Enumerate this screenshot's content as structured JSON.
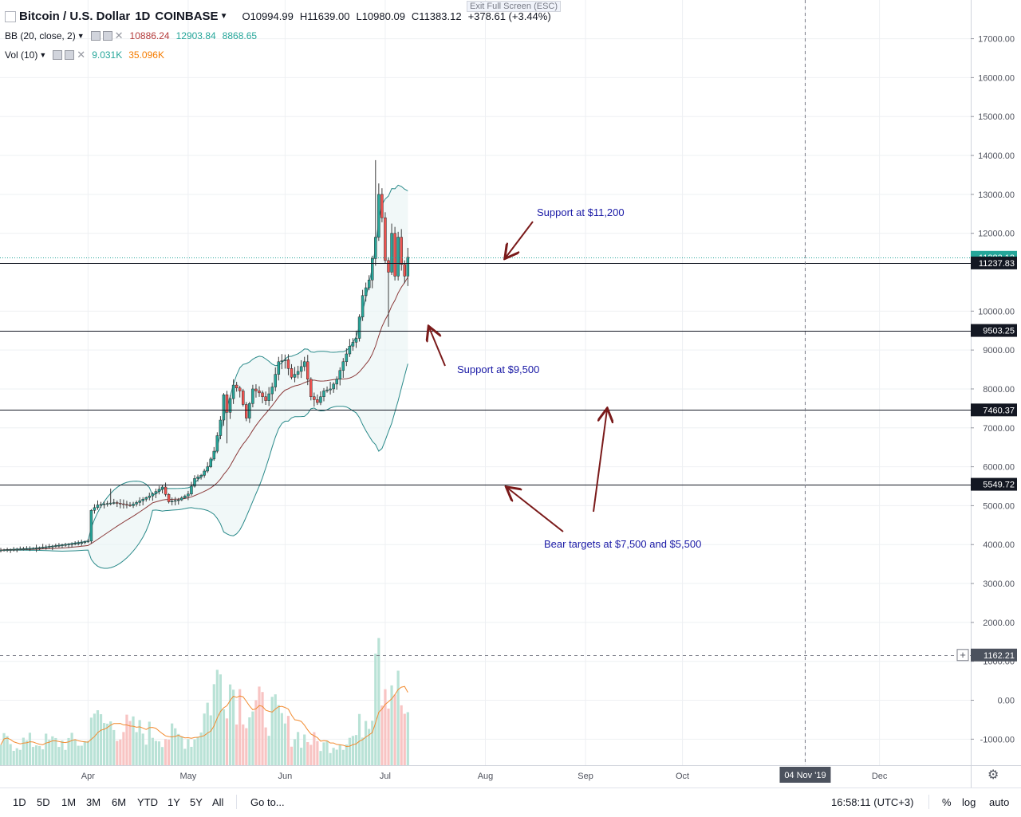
{
  "header": {
    "symbol": "Bitcoin / U.S. Dollar",
    "interval": "1D",
    "exchange": "COINBASE",
    "open": "O10994.99",
    "high": "H11639.00",
    "low": "L10980.09",
    "close": "C11383.12",
    "change": "+378.61 (+3.44%)",
    "exit_fullscreen": "Exit Full Screen (ESC)"
  },
  "indicators": {
    "bb": {
      "label": "BB (20, close, 2)",
      "v1": "10886.24",
      "v2": "12903.84",
      "v3": "8868.65"
    },
    "vol": {
      "label": "Vol (10)",
      "v1": "9.031K",
      "v2": "35.096K"
    }
  },
  "colors": {
    "up": "#26a69a",
    "down": "#ef5350",
    "bb_band": "#2a8a8a",
    "bb_basis": "#8b3a3a",
    "vol_up": "#b9e2d6",
    "vol_down": "#f8c4c3",
    "vol_ma": "#f28b30",
    "annot_text": "#1a1aa6",
    "arrow": "#7a1a1a",
    "legend_green": "#26a69a",
    "legend_red": "#b43b3b",
    "legend_orange": "#f57c00"
  },
  "bottom_bar": {
    "timeframes": [
      "1D",
      "5D",
      "1M",
      "3M",
      "6M",
      "YTD",
      "1Y",
      "5Y",
      "All"
    ],
    "goto": "Go to...",
    "clock": "16:58:11 (UTC+3)",
    "percent": "%",
    "log": "log",
    "auto": "auto"
  },
  "chart_data": {
    "type": "candlestick",
    "title": "Bitcoin / U.S. Dollar, 1D, COINBASE",
    "x_ticks": [
      "Apr",
      "May",
      "Jun",
      "Jul",
      "Aug",
      "Sep",
      "Oct",
      "04 Nov '19",
      "Dec"
    ],
    "y_ticks": [
      "17000.00",
      "16000.00",
      "15000.00",
      "14000.00",
      "13000.00",
      "12000.00",
      "10000.00",
      "9000.00",
      "8000.00",
      "7000.00",
      "6000.00",
      "5000.00",
      "4000.00",
      "3000.00",
      "2000.00",
      "1000.00",
      "0.00",
      "-1000.00"
    ],
    "ylim": [
      -1800,
      17700
    ],
    "price_tags": [
      {
        "value": 11383.12,
        "label": "11383.12",
        "style": "last"
      },
      {
        "value": 11237.83,
        "label": "11237.83",
        "style": "line"
      },
      {
        "value": 9503.25,
        "label": "9503.25",
        "style": "line"
      },
      {
        "value": 7460.37,
        "label": "7460.37",
        "style": "line"
      },
      {
        "value": 5549.72,
        "label": "5549.72",
        "style": "line"
      },
      {
        "value": 1162.21,
        "label": "1162.21",
        "style": "crosshair"
      }
    ],
    "crosshair_x_label": "04 Nov '19",
    "annotations": [
      {
        "text": "Support at $11,200"
      },
      {
        "text": "Support at $9,500"
      },
      {
        "text": "Bear targets at $7,500 and $5,500"
      }
    ],
    "anchors": [
      {
        "day": 0,
        "price": 3860
      },
      {
        "day": 10,
        "price": 3900
      },
      {
        "day": 20,
        "price": 4000
      },
      {
        "day": 25,
        "price": 4050
      },
      {
        "day": 27,
        "price": 4090
      },
      {
        "day": 28,
        "price": 4880
      },
      {
        "day": 30,
        "price": 5020
      },
      {
        "day": 35,
        "price": 5080
      },
      {
        "day": 40,
        "price": 5000
      },
      {
        "day": 46,
        "price": 5250
      },
      {
        "day": 50,
        "price": 5480
      },
      {
        "day": 52,
        "price": 5100
      },
      {
        "day": 55,
        "price": 5150
      },
      {
        "day": 58,
        "price": 5300
      },
      {
        "day": 60,
        "price": 5700
      },
      {
        "day": 62,
        "price": 5780
      },
      {
        "day": 64,
        "price": 6000
      },
      {
        "day": 66,
        "price": 6400
      },
      {
        "day": 68,
        "price": 7200
      },
      {
        "day": 69,
        "price": 7850
      },
      {
        "day": 70,
        "price": 7400
      },
      {
        "day": 72,
        "price": 8100
      },
      {
        "day": 74,
        "price": 7950
      },
      {
        "day": 76,
        "price": 7250
      },
      {
        "day": 78,
        "price": 8000
      },
      {
        "day": 80,
        "price": 7900
      },
      {
        "day": 82,
        "price": 7700
      },
      {
        "day": 84,
        "price": 8050
      },
      {
        "day": 86,
        "price": 8700
      },
      {
        "day": 88,
        "price": 8750
      },
      {
        "day": 90,
        "price": 8300
      },
      {
        "day": 92,
        "price": 8450
      },
      {
        "day": 94,
        "price": 8700
      },
      {
        "day": 96,
        "price": 7800
      },
      {
        "day": 98,
        "price": 7650
      },
      {
        "day": 100,
        "price": 7950
      },
      {
        "day": 102,
        "price": 8000
      },
      {
        "day": 104,
        "price": 8250
      },
      {
        "day": 106,
        "price": 8700
      },
      {
        "day": 108,
        "price": 9100
      },
      {
        "day": 110,
        "price": 9300
      },
      {
        "day": 112,
        "price": 10400
      },
      {
        "day": 114,
        "price": 10800
      },
      {
        "day": 116,
        "price": 11900
      },
      {
        "day": 117,
        "price": 13000
      },
      {
        "day": 118,
        "price": 12400
      },
      {
        "day": 119,
        "price": 11300
      },
      {
        "day": 120,
        "price": 11000
      },
      {
        "day": 121,
        "price": 12000
      },
      {
        "day": 122,
        "price": 10900
      },
      {
        "day": 123,
        "price": 11900
      },
      {
        "day": 124,
        "price": 11200
      },
      {
        "day": 125,
        "price": 10900
      },
      {
        "day": 126,
        "price": 11383
      }
    ],
    "volume_levels": [
      {
        "day": 0,
        "volume": 7
      },
      {
        "day": 27,
        "volume": 7
      },
      {
        "day": 28,
        "volume": 22
      },
      {
        "day": 30,
        "volume": 13
      },
      {
        "day": 45,
        "volume": 10
      },
      {
        "day": 60,
        "volume": 8
      },
      {
        "day": 68,
        "volume": 28
      },
      {
        "day": 72,
        "volume": 24
      },
      {
        "day": 76,
        "volume": 18
      },
      {
        "day": 84,
        "volume": 16
      },
      {
        "day": 90,
        "volume": 10
      },
      {
        "day": 100,
        "volume": 6
      },
      {
        "day": 110,
        "volume": 9
      },
      {
        "day": 115,
        "volume": 20
      },
      {
        "day": 116,
        "volume": 50
      },
      {
        "day": 117,
        "volume": 46
      },
      {
        "day": 118,
        "volume": 28
      },
      {
        "day": 122,
        "volume": 26
      },
      {
        "day": 126,
        "volume": 12
      }
    ],
    "volume_unit": "K",
    "bb_period": 20,
    "bb_mult": 2,
    "vol_ma_period": 10,
    "grid": true
  }
}
